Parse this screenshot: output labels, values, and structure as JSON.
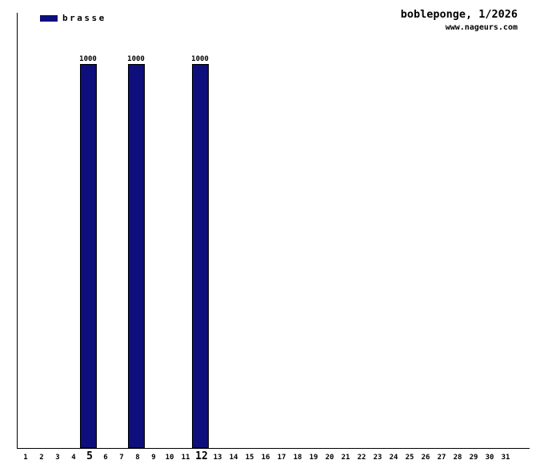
{
  "header": {
    "title": "bobleponge, 1/2026",
    "watermark": "www.nageurs.com"
  },
  "legend": {
    "label": "brasse",
    "color": "#0e0e7d"
  },
  "chart_data": {
    "type": "bar",
    "title": "bobleponge, 1/2026",
    "watermark": "www.nageurs.com",
    "legend_entries": [
      {
        "name": "brasse",
        "color": "#0e0e7d"
      }
    ],
    "legend_position": "top-left",
    "categories": [
      1,
      2,
      3,
      4,
      5,
      6,
      7,
      8,
      9,
      10,
      11,
      12,
      13,
      14,
      15,
      16,
      17,
      18,
      19,
      20,
      21,
      22,
      23,
      24,
      25,
      26,
      27,
      28,
      29,
      30,
      31
    ],
    "values": [
      0,
      0,
      0,
      0,
      1000,
      0,
      0,
      1000,
      0,
      0,
      0,
      1000,
      0,
      0,
      0,
      0,
      0,
      0,
      0,
      0,
      0,
      0,
      0,
      0,
      0,
      0,
      0,
      0,
      0,
      0,
      0
    ],
    "data_label_values": [
      1000,
      1000,
      1000
    ],
    "bold_x_labels": [
      5,
      12
    ],
    "ylim": [
      0,
      1130
    ],
    "grid": false,
    "axis_color": "#000000",
    "background_color": "#ffffff"
  }
}
